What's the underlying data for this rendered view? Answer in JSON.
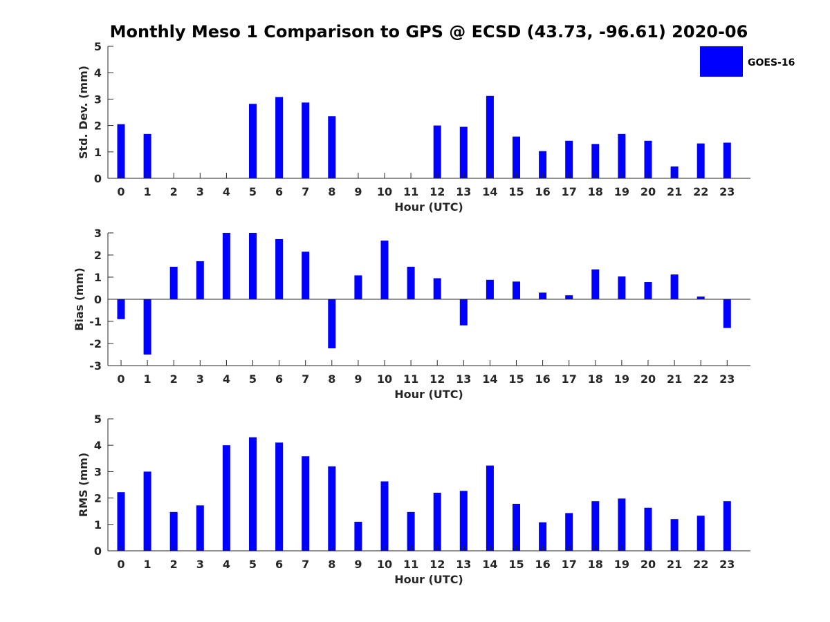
{
  "figure": {
    "title": "Monthly Meso 1 Comparison to GPS @ ECSD (43.73, -96.61) 2020-06",
    "bar_color": "#0000ff",
    "legend": {
      "label": "GOES-16",
      "placement": "top-right"
    }
  },
  "chart_data": [
    {
      "type": "bar",
      "categories": [
        "0",
        "1",
        "2",
        "3",
        "4",
        "5",
        "6",
        "7",
        "8",
        "9",
        "10",
        "11",
        "12",
        "13",
        "14",
        "15",
        "16",
        "17",
        "18",
        "19",
        "20",
        "21",
        "22",
        "23"
      ],
      "series": [
        {
          "name": "GOES-16",
          "values": [
            2.05,
            1.68,
            null,
            null,
            null,
            2.82,
            3.08,
            2.87,
            2.35,
            null,
            null,
            null,
            2.0,
            1.95,
            3.12,
            1.58,
            1.03,
            1.42,
            1.3,
            1.68,
            1.42,
            0.45,
            1.32,
            1.35
          ]
        }
      ],
      "xlabel": "Hour (UTC)",
      "ylabel": "Std. Dev. (mm)",
      "ylim": [
        0,
        5
      ],
      "yticks": [
        0,
        1,
        2,
        3,
        4,
        5
      ]
    },
    {
      "type": "bar",
      "categories": [
        "0",
        "1",
        "2",
        "3",
        "4",
        "5",
        "6",
        "7",
        "8",
        "9",
        "10",
        "11",
        "12",
        "13",
        "14",
        "15",
        "16",
        "17",
        "18",
        "19",
        "20",
        "21",
        "22",
        "23"
      ],
      "series": [
        {
          "name": "GOES-16",
          "values": [
            -0.9,
            -2.5,
            1.47,
            1.72,
            3.0,
            3.0,
            2.72,
            2.15,
            -2.22,
            1.08,
            2.65,
            1.47,
            0.95,
            -1.18,
            0.88,
            0.8,
            0.3,
            0.18,
            1.35,
            1.03,
            0.78,
            1.12,
            0.12,
            -1.3
          ]
        }
      ],
      "xlabel": "Hour (UTC)",
      "ylabel": "Bias (mm)",
      "ylim": [
        -3,
        3
      ],
      "yticks": [
        -3,
        -2,
        -1,
        0,
        1,
        2,
        3
      ]
    },
    {
      "type": "bar",
      "categories": [
        "0",
        "1",
        "2",
        "3",
        "4",
        "5",
        "6",
        "7",
        "8",
        "9",
        "10",
        "11",
        "12",
        "13",
        "14",
        "15",
        "16",
        "17",
        "18",
        "19",
        "20",
        "21",
        "22",
        "23"
      ],
      "series": [
        {
          "name": "GOES-16",
          "values": [
            2.22,
            3.0,
            1.47,
            1.72,
            4.0,
            4.3,
            4.1,
            3.58,
            3.2,
            1.1,
            2.63,
            1.47,
            2.2,
            2.27,
            3.23,
            1.78,
            1.08,
            1.43,
            1.88,
            1.98,
            1.63,
            1.2,
            1.33,
            1.88
          ]
        }
      ],
      "xlabel": "Hour (UTC)",
      "ylabel": "RMS (mm)",
      "ylim": [
        0,
        5
      ],
      "yticks": [
        0,
        1,
        2,
        3,
        4,
        5
      ]
    }
  ]
}
